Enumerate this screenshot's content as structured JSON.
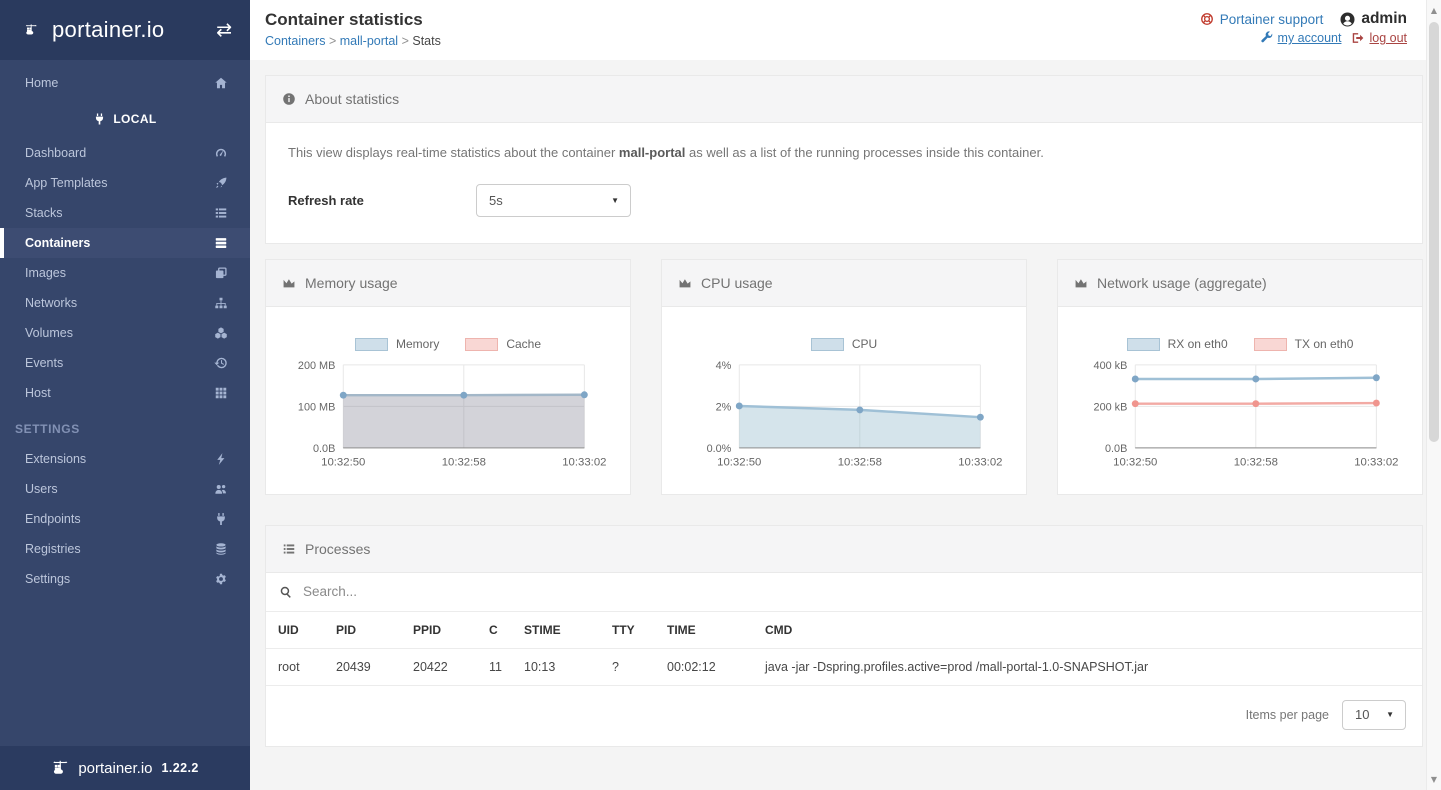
{
  "sidebar": {
    "logo_text": "portainer.io",
    "collapse_icon": "⇄",
    "local_label": "LOCAL",
    "settings_header": "SETTINGS",
    "items_top": [
      {
        "label": "Home",
        "icon": "home"
      }
    ],
    "items": [
      {
        "label": "Dashboard",
        "icon": "dashboard"
      },
      {
        "label": "App Templates",
        "icon": "rocket"
      },
      {
        "label": "Stacks",
        "icon": "stacks"
      },
      {
        "label": "Containers",
        "icon": "containers",
        "active": true
      },
      {
        "label": "Images",
        "icon": "images"
      },
      {
        "label": "Networks",
        "icon": "networks"
      },
      {
        "label": "Volumes",
        "icon": "volumes"
      },
      {
        "label": "Events",
        "icon": "history"
      },
      {
        "label": "Host",
        "icon": "host"
      }
    ],
    "settings_items": [
      {
        "label": "Extensions",
        "icon": "bolt"
      },
      {
        "label": "Users",
        "icon": "users"
      },
      {
        "label": "Endpoints",
        "icon": "plug"
      },
      {
        "label": "Registries",
        "icon": "registries"
      },
      {
        "label": "Settings",
        "icon": "cogs"
      }
    ],
    "footer_brand": "portainer.io",
    "version": "1.22.2"
  },
  "header": {
    "title": "Container statistics",
    "breadcrumb": [
      "Containers",
      "mall-portal",
      "Stats"
    ],
    "separator": ">",
    "support_label": "Portainer support",
    "username": "admin",
    "my_account_label": "my account",
    "log_out_label": "log out"
  },
  "about": {
    "title": "About statistics",
    "desc_pre": "This view displays real-time statistics about the container ",
    "container_name": "mall-portal",
    "desc_post": " as well as a list of the running processes inside this container.",
    "refresh_rate_label": "Refresh rate",
    "refresh_rate_value": "5s"
  },
  "chart_data": [
    {
      "type": "area",
      "title": "Memory usage",
      "categories": [
        "10:32:50",
        "10:32:58",
        "10:33:02"
      ],
      "ylim": [
        0,
        200
      ],
      "yticks": [
        {
          "value": 200,
          "label": "200 MB"
        },
        {
          "value": 100,
          "label": "100 MB"
        },
        {
          "value": 0,
          "label": "0.0B"
        }
      ],
      "grid": true,
      "legend_position": "top",
      "series": [
        {
          "name": "Memory",
          "values": [
            127,
            127,
            128
          ],
          "unit": "MB",
          "line_color": "#a3b7c8",
          "fill_color": "rgba(130,130,145,0.35)",
          "point_color": "#7fa6c6",
          "legend_fill": "#cfdfea",
          "legend_border": "#a8c3d5",
          "visible": true
        },
        {
          "name": "Cache",
          "values": [
            0,
            0,
            0
          ],
          "unit": "MB",
          "line_color": "#f2aaa4",
          "fill_color": "rgba(242,170,164,0.3)",
          "point_color": "#f0a19b",
          "legend_fill": "#f9d7d4",
          "legend_border": "#eeb4ae",
          "visible": false
        }
      ]
    },
    {
      "type": "area",
      "title": "CPU usage",
      "categories": [
        "10:32:50",
        "10:32:58",
        "10:33:02"
      ],
      "ylim": [
        0,
        4
      ],
      "yticks": [
        {
          "value": 4,
          "label": "4%"
        },
        {
          "value": 2,
          "label": "2%"
        },
        {
          "value": 0,
          "label": "0.0%"
        }
      ],
      "grid": true,
      "legend_position": "top",
      "series": [
        {
          "name": "CPU",
          "values": [
            2.02,
            1.83,
            1.48
          ],
          "unit": "%",
          "line_color": "#9fc0d6",
          "fill_color": "rgba(151,187,205,0.4)",
          "point_color": "#7fa6c6",
          "legend_fill": "#cfdfea",
          "legend_border": "#a8c3d5",
          "visible": true
        }
      ]
    },
    {
      "type": "line",
      "title": "Network usage (aggregate)",
      "categories": [
        "10:32:50",
        "10:32:58",
        "10:33:02"
      ],
      "ylim": [
        0,
        400
      ],
      "yticks": [
        {
          "value": 400,
          "label": "400 kB"
        },
        {
          "value": 200,
          "label": "200 kB"
        },
        {
          "value": 0,
          "label": "0.0B"
        }
      ],
      "grid": true,
      "legend_position": "top",
      "series": [
        {
          "name": "RX on eth0",
          "values": [
            332,
            332,
            338
          ],
          "unit": "kB",
          "line_color": "#9fc0d6",
          "fill_color": null,
          "point_color": "#7fa6c6",
          "legend_fill": "#cfdfea",
          "legend_border": "#a8c3d5",
          "visible": true
        },
        {
          "name": "TX on eth0",
          "values": [
            213,
            213,
            216
          ],
          "unit": "kB",
          "line_color": "#f2aaa4",
          "fill_color": null,
          "point_color": "#f0958e",
          "legend_fill": "#f9d7d4",
          "legend_border": "#eeb4ae",
          "visible": true
        }
      ]
    }
  ],
  "processes": {
    "title": "Processes",
    "search_placeholder": "Search...",
    "columns": [
      "UID",
      "PID",
      "PPID",
      "C",
      "STIME",
      "TTY",
      "TIME",
      "CMD"
    ],
    "rows": [
      [
        "root",
        "20439",
        "20422",
        "11",
        "10:13",
        "?",
        "00:02:12",
        "java -jar -Dspring.profiles.active=prod /mall-portal-1.0-SNAPSHOT.jar"
      ]
    ],
    "items_per_page_label": "Items per page",
    "items_per_page_value": "10"
  },
  "colors": {
    "sidebar_bg": "#36466b",
    "sidebar_dark_bg": "#2a3a5e",
    "sidebar_active_bg": "#3d4c72",
    "link_blue": "#337ab7",
    "danger_red": "#a94442",
    "page_bg": "#f4f4f4",
    "panel_header_bg": "#f5f5f6",
    "chart_blue": "#9fc0d6",
    "chart_pink": "#f2aaa4"
  },
  "scrollbar": {
    "up_glyph": "▲",
    "down_glyph": "▼"
  }
}
